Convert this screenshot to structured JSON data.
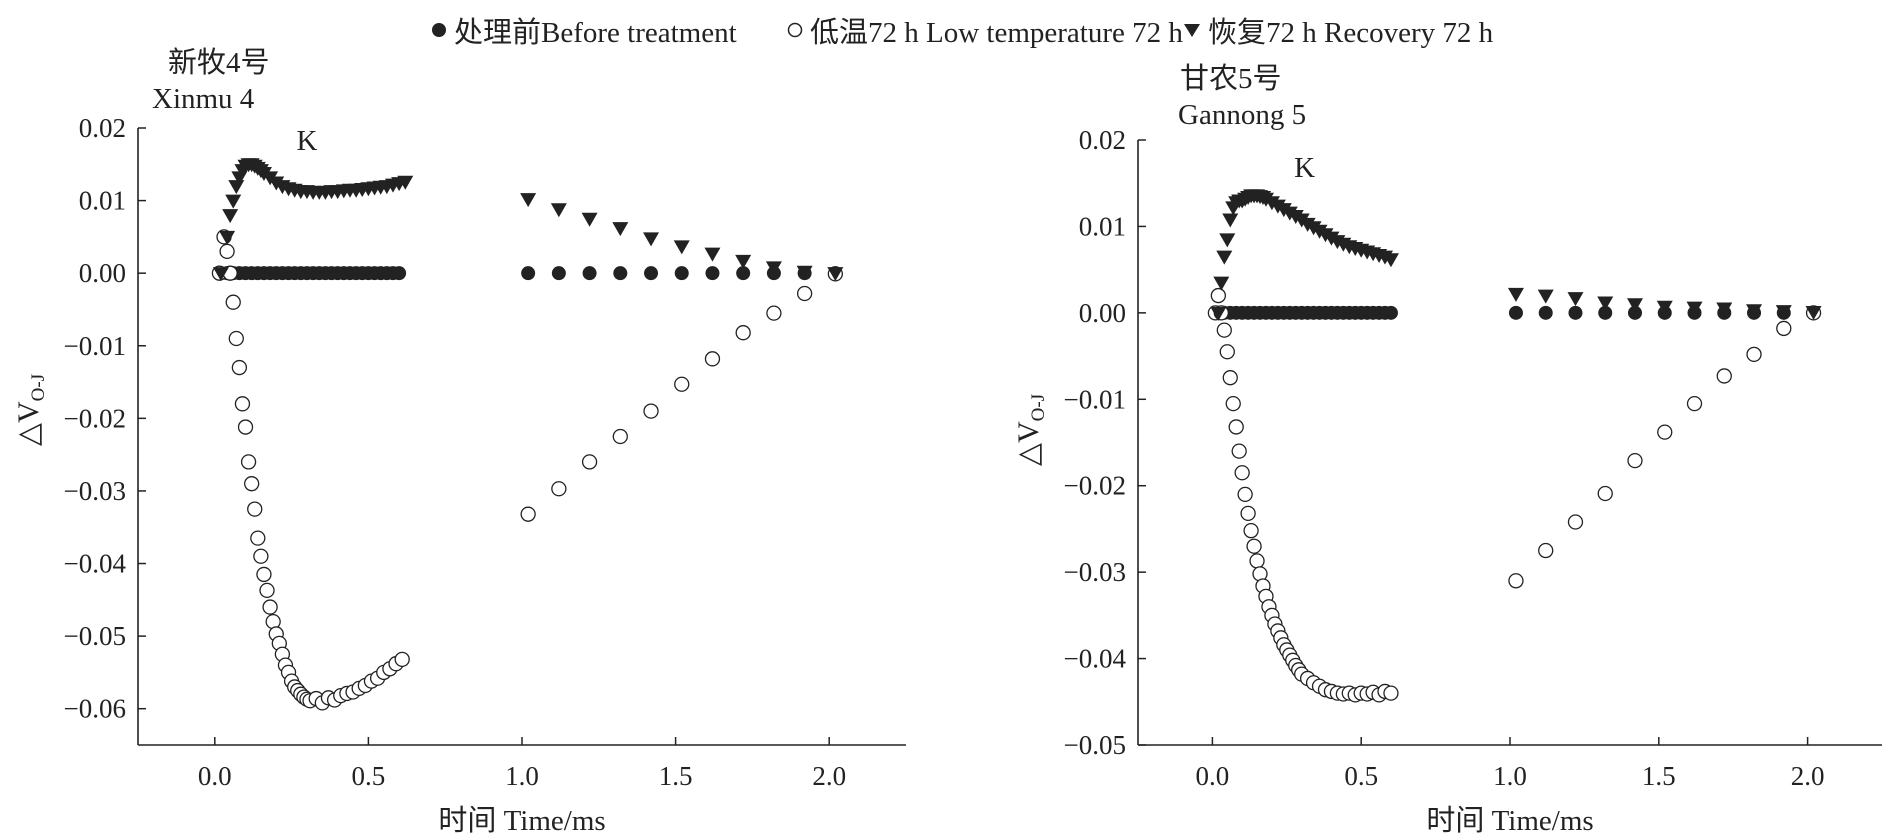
{
  "legend": {
    "items": [
      {
        "label": "处理前Before treatment",
        "marker": "filled-circle",
        "color": "#222222"
      },
      {
        "label": "低温72 h Low temperature 72 h",
        "marker": "open-circle",
        "color": "#222222"
      },
      {
        "label": "恢复72 h Recovery 72 h",
        "marker": "filled-triangle-down",
        "color": "#222222"
      }
    ]
  },
  "chart_data": [
    {
      "type": "scatter",
      "title_zh": "新牧4号",
      "title_en": "Xinmu 4",
      "annotation": "K",
      "xlabel": "时间 Time/ms",
      "ylabel_main": "△V",
      "ylabel_sub": "O-J",
      "xlim": [
        -0.25,
        2.25
      ],
      "ylim": [
        -0.065,
        0.02
      ],
      "xticks": [
        {
          "v": 0.0,
          "label": "0.0"
        },
        {
          "v": 0.5,
          "label": "0.5"
        },
        {
          "v": 1.0,
          "label": "1.0"
        },
        {
          "v": 1.5,
          "label": "1.5"
        },
        {
          "v": 2.0,
          "label": "2.0"
        }
      ],
      "yticks": [
        {
          "v": 0.02,
          "label": "0.02"
        },
        {
          "v": 0.01,
          "label": "0.01"
        },
        {
          "v": 0.0,
          "label": "0.00"
        },
        {
          "v": -0.01,
          "label": "−0.01"
        },
        {
          "v": -0.02,
          "label": "−0.02"
        },
        {
          "v": -0.03,
          "label": "−0.03"
        },
        {
          "v": -0.04,
          "label": "−0.04"
        },
        {
          "v": -0.05,
          "label": "−0.05"
        },
        {
          "v": -0.06,
          "label": "−0.06"
        }
      ],
      "k_point": {
        "x": 0.3,
        "y": 0.017
      },
      "series": [
        {
          "name": "处理前Before treatment",
          "marker": "filled-circle",
          "x": [
            0.02,
            0.04,
            0.06,
            0.08,
            0.1,
            0.12,
            0.14,
            0.16,
            0.18,
            0.2,
            0.22,
            0.24,
            0.26,
            0.28,
            0.3,
            0.32,
            0.34,
            0.36,
            0.38,
            0.4,
            0.42,
            0.44,
            0.46,
            0.48,
            0.5,
            0.52,
            0.54,
            0.56,
            0.58,
            0.6,
            1.02,
            1.12,
            1.22,
            1.32,
            1.42,
            1.52,
            1.62,
            1.72,
            1.82,
            1.92,
            2.02
          ],
          "y": [
            0,
            0,
            0,
            0,
            0,
            0,
            0,
            0,
            0,
            0,
            0,
            0,
            0,
            0,
            0,
            0,
            0,
            0,
            0,
            0,
            0,
            0,
            0,
            0,
            0,
            0,
            0,
            0,
            0,
            0,
            0,
            0,
            0,
            0,
            0,
            0,
            0,
            0,
            0,
            0,
            0
          ]
        },
        {
          "name": "低温72 h Low temperature 72 h",
          "marker": "open-circle",
          "x": [
            0.015,
            0.03,
            0.04,
            0.05,
            0.06,
            0.07,
            0.08,
            0.09,
            0.1,
            0.11,
            0.12,
            0.13,
            0.14,
            0.15,
            0.16,
            0.17,
            0.18,
            0.19,
            0.2,
            0.21,
            0.22,
            0.23,
            0.24,
            0.25,
            0.26,
            0.27,
            0.28,
            0.29,
            0.3,
            0.31,
            0.33,
            0.35,
            0.37,
            0.39,
            0.41,
            0.43,
            0.45,
            0.47,
            0.49,
            0.51,
            0.53,
            0.55,
            0.57,
            0.59,
            0.61,
            1.02,
            1.12,
            1.22,
            1.32,
            1.42,
            1.52,
            1.62,
            1.72,
            1.82,
            1.92,
            2.02
          ],
          "y": [
            0.0,
            0.005,
            0.003,
            0.0,
            -0.004,
            -0.009,
            -0.013,
            -0.018,
            -0.0212,
            -0.026,
            -0.029,
            -0.0325,
            -0.0365,
            -0.039,
            -0.0415,
            -0.0437,
            -0.046,
            -0.048,
            -0.0497,
            -0.051,
            -0.0525,
            -0.054,
            -0.055,
            -0.0562,
            -0.057,
            -0.0575,
            -0.058,
            -0.0584,
            -0.0587,
            -0.0589,
            -0.0586,
            -0.0592,
            -0.0585,
            -0.0588,
            -0.0582,
            -0.0579,
            -0.0577,
            -0.0572,
            -0.0568,
            -0.0562,
            -0.0558,
            -0.055,
            -0.0545,
            -0.0538,
            -0.0532,
            -0.0332,
            -0.0297,
            -0.026,
            -0.0225,
            -0.019,
            -0.0153,
            -0.0118,
            -0.0082,
            -0.0055,
            -0.0028,
            -0.0001
          ]
        },
        {
          "name": "恢复72 h Recovery 72 h",
          "marker": "filled-triangle-down",
          "x": [
            0.02,
            0.04,
            0.05,
            0.06,
            0.07,
            0.08,
            0.09,
            0.1,
            0.11,
            0.12,
            0.13,
            0.14,
            0.15,
            0.16,
            0.18,
            0.2,
            0.22,
            0.24,
            0.26,
            0.28,
            0.3,
            0.32,
            0.34,
            0.36,
            0.38,
            0.4,
            0.42,
            0.44,
            0.46,
            0.48,
            0.5,
            0.52,
            0.54,
            0.56,
            0.58,
            0.6,
            0.62,
            1.02,
            1.12,
            1.22,
            1.32,
            1.42,
            1.52,
            1.62,
            1.72,
            1.82,
            1.92,
            2.02
          ],
          "y": [
            0.0,
            0.005,
            0.008,
            0.01,
            0.012,
            0.0132,
            0.0142,
            0.0148,
            0.015,
            0.015,
            0.0148,
            0.0145,
            0.0142,
            0.0138,
            0.0132,
            0.0125,
            0.012,
            0.0117,
            0.0115,
            0.0113,
            0.0113,
            0.0112,
            0.0112,
            0.0112,
            0.0113,
            0.0113,
            0.0114,
            0.0115,
            0.0115,
            0.0116,
            0.0117,
            0.0118,
            0.0119,
            0.012,
            0.0122,
            0.0124,
            0.0126,
            0.0102,
            0.0088,
            0.0075,
            0.0062,
            0.0048,
            0.0037,
            0.0027,
            0.0017,
            0.0008,
            0.0002,
            0.0
          ]
        }
      ]
    },
    {
      "type": "scatter",
      "title_zh": "甘农5号",
      "title_en": "Gannong 5",
      "annotation": "K",
      "xlabel": "时间 Time/ms",
      "ylabel_main": "△V",
      "ylabel_sub": "O-J",
      "xlim": [
        -0.25,
        2.25
      ],
      "ylim": [
        -0.05,
        0.02
      ],
      "xticks": [
        {
          "v": 0.0,
          "label": "0.0"
        },
        {
          "v": 0.5,
          "label": "0.5"
        },
        {
          "v": 1.0,
          "label": "1.0"
        },
        {
          "v": 1.5,
          "label": "1.5"
        },
        {
          "v": 2.0,
          "label": "2.0"
        }
      ],
      "yticks": [
        {
          "v": 0.02,
          "label": "0.02"
        },
        {
          "v": 0.01,
          "label": "0.01"
        },
        {
          "v": 0.0,
          "label": "0.00"
        },
        {
          "v": -0.01,
          "label": "−0.01"
        },
        {
          "v": -0.02,
          "label": "−0.02"
        },
        {
          "v": -0.03,
          "label": "−0.03"
        },
        {
          "v": -0.04,
          "label": "−0.04"
        },
        {
          "v": -0.05,
          "label": "−0.05"
        }
      ],
      "k_point": {
        "x": 0.31,
        "y": 0.0157
      },
      "series": [
        {
          "name": "处理前Before treatment",
          "marker": "filled-circle",
          "x": [
            0.02,
            0.04,
            0.06,
            0.08,
            0.1,
            0.12,
            0.14,
            0.16,
            0.18,
            0.2,
            0.22,
            0.24,
            0.26,
            0.28,
            0.3,
            0.32,
            0.34,
            0.36,
            0.38,
            0.4,
            0.42,
            0.44,
            0.46,
            0.48,
            0.5,
            0.52,
            0.54,
            0.56,
            0.58,
            0.6,
            1.02,
            1.12,
            1.22,
            1.32,
            1.42,
            1.52,
            1.62,
            1.72,
            1.82,
            1.92,
            2.02
          ],
          "y": [
            0,
            0,
            0,
            0,
            0,
            0,
            0,
            0,
            0,
            0,
            0,
            0,
            0,
            0,
            0,
            0,
            0,
            0,
            0,
            0,
            0,
            0,
            0,
            0,
            0,
            0,
            0,
            0,
            0,
            0,
            0,
            0,
            0,
            0,
            0,
            0,
            0,
            0,
            0,
            0,
            0
          ]
        },
        {
          "name": "低温72 h Low temperature 72 h",
          "marker": "open-circle",
          "x": [
            0.01,
            0.02,
            0.03,
            0.04,
            0.05,
            0.06,
            0.07,
            0.08,
            0.09,
            0.1,
            0.11,
            0.12,
            0.13,
            0.14,
            0.15,
            0.16,
            0.17,
            0.18,
            0.19,
            0.2,
            0.21,
            0.22,
            0.23,
            0.24,
            0.25,
            0.26,
            0.27,
            0.28,
            0.29,
            0.3,
            0.32,
            0.34,
            0.36,
            0.38,
            0.4,
            0.42,
            0.44,
            0.46,
            0.48,
            0.5,
            0.52,
            0.54,
            0.56,
            0.58,
            0.6,
            1.02,
            1.12,
            1.22,
            1.32,
            1.42,
            1.52,
            1.62,
            1.72,
            1.82,
            1.92,
            2.02
          ],
          "y": [
            0.0,
            0.002,
            0.0,
            -0.002,
            -0.0045,
            -0.0075,
            -0.0105,
            -0.0132,
            -0.016,
            -0.0185,
            -0.021,
            -0.0232,
            -0.0252,
            -0.027,
            -0.0287,
            -0.0302,
            -0.0316,
            -0.0328,
            -0.034,
            -0.035,
            -0.036,
            -0.0368,
            -0.0376,
            -0.0384,
            -0.039,
            -0.0396,
            -0.0402,
            -0.0408,
            -0.0413,
            -0.0418,
            -0.0423,
            -0.0428,
            -0.0432,
            -0.0436,
            -0.0438,
            -0.044,
            -0.0441,
            -0.044,
            -0.0442,
            -0.044,
            -0.0441,
            -0.0439,
            -0.0442,
            -0.0438,
            -0.044,
            -0.031,
            -0.0275,
            -0.0242,
            -0.0209,
            -0.0171,
            -0.0138,
            -0.0105,
            -0.0073,
            -0.0048,
            -0.0018,
            0.0
          ]
        },
        {
          "name": "恢复72 h Recovery 72 h",
          "marker": "filled-triangle-down",
          "x": [
            0.02,
            0.03,
            0.04,
            0.05,
            0.06,
            0.07,
            0.08,
            0.09,
            0.1,
            0.11,
            0.12,
            0.13,
            0.14,
            0.15,
            0.16,
            0.17,
            0.18,
            0.2,
            0.22,
            0.24,
            0.26,
            0.28,
            0.3,
            0.32,
            0.34,
            0.36,
            0.38,
            0.4,
            0.42,
            0.44,
            0.46,
            0.48,
            0.5,
            0.52,
            0.54,
            0.56,
            0.58,
            0.6,
            1.02,
            1.12,
            1.22,
            1.32,
            1.42,
            1.52,
            1.62,
            1.72,
            1.82,
            1.92,
            2.02
          ],
          "y": [
            0.0,
            0.0035,
            0.0065,
            0.0085,
            0.0108,
            0.0122,
            0.0128,
            0.013,
            0.013,
            0.0132,
            0.0134,
            0.0136,
            0.0136,
            0.0136,
            0.0135,
            0.0134,
            0.0132,
            0.0128,
            0.0124,
            0.012,
            0.0116,
            0.0112,
            0.0108,
            0.0103,
            0.0099,
            0.0095,
            0.0091,
            0.0087,
            0.0083,
            0.008,
            0.0077,
            0.0075,
            0.0073,
            0.0071,
            0.0069,
            0.0067,
            0.0065,
            0.0062,
            0.0022,
            0.002,
            0.0017,
            0.0012,
            0.001,
            0.0007,
            0.0006,
            0.0005,
            0.0003,
            0.0002,
            0.0001
          ]
        }
      ]
    }
  ]
}
